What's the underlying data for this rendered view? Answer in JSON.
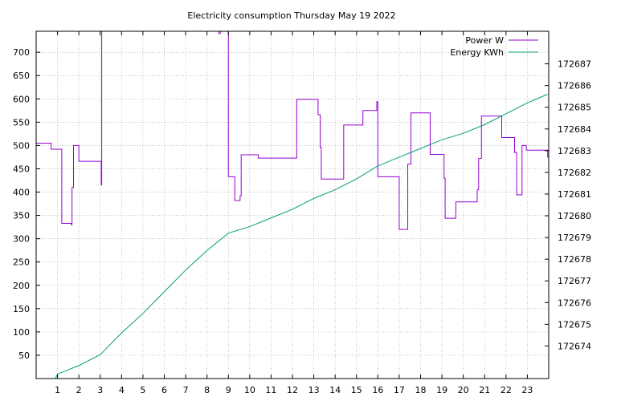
{
  "chart_data": {
    "type": "line",
    "title": "Electricity consumption Thursday May 19 2022",
    "xlabel": "",
    "ylabel": "",
    "y2label": "",
    "xlim": [
      0,
      24
    ],
    "ylim": [
      0,
      745
    ],
    "y2lim": [
      172672.5,
      172688.5
    ],
    "xticks": [
      "1",
      "2",
      "3",
      "4",
      "5",
      "6",
      "7",
      "8",
      "9",
      "10",
      "11",
      "12",
      "13",
      "14",
      "15",
      "16",
      "17",
      "18",
      "19",
      "20",
      "21",
      "22",
      "23"
    ],
    "yticks": [
      "50",
      "100",
      "150",
      "200",
      "250",
      "300",
      "350",
      "400",
      "450",
      "500",
      "550",
      "600",
      "650",
      "700"
    ],
    "y2ticks": [
      "172674",
      "172675",
      "172676",
      "172677",
      "172678",
      "172679",
      "172680",
      "172681",
      "172682",
      "172683",
      "172684",
      "172685",
      "172686",
      "172687"
    ],
    "grid": true,
    "legend_position": "top-right",
    "series": [
      {
        "name": "Power W",
        "axis": "y1",
        "color": "#9400d3",
        "step": true,
        "points": [
          [
            0,
            505
          ],
          [
            0.7,
            492
          ],
          [
            1.2,
            333
          ],
          [
            1.65,
            330
          ],
          [
            1.68,
            410
          ],
          [
            1.75,
            500
          ],
          [
            2.0,
            466
          ],
          [
            3.05,
            415
          ],
          [
            3.07,
            745
          ],
          [
            8.55,
            740
          ],
          [
            8.62,
            745
          ],
          [
            8.95,
            745
          ],
          [
            9.0,
            433
          ],
          [
            9.3,
            382
          ],
          [
            9.55,
            392
          ],
          [
            9.6,
            480
          ],
          [
            10.4,
            473
          ],
          [
            12.2,
            599
          ],
          [
            13.2,
            566
          ],
          [
            13.3,
            496
          ],
          [
            13.35,
            428
          ],
          [
            14.4,
            544
          ],
          [
            15.3,
            575
          ],
          [
            15.95,
            594
          ],
          [
            16.0,
            433
          ],
          [
            17.0,
            320
          ],
          [
            17.4,
            460
          ],
          [
            17.55,
            570
          ],
          [
            18.45,
            481
          ],
          [
            19.1,
            430
          ],
          [
            19.15,
            344
          ],
          [
            19.65,
            379
          ],
          [
            20.65,
            405
          ],
          [
            20.72,
            472
          ],
          [
            20.85,
            563
          ],
          [
            21.8,
            517
          ],
          [
            22.4,
            485
          ],
          [
            22.5,
            394
          ],
          [
            22.75,
            500
          ],
          [
            22.95,
            490
          ],
          [
            23.95,
            475
          ]
        ]
      },
      {
        "name": "Energy KWh",
        "axis": "y2",
        "color": "#009e73",
        "step": false,
        "points": [
          [
            0.9,
            172672.5
          ],
          [
            1.0,
            172672.7
          ],
          [
            2.0,
            172673.1
          ],
          [
            3.0,
            172673.6
          ],
          [
            4.0,
            172674.6
          ],
          [
            5.0,
            172675.5
          ],
          [
            6.0,
            172676.5
          ],
          [
            7.0,
            172677.5
          ],
          [
            8.0,
            172678.4
          ],
          [
            9.0,
            172679.2
          ],
          [
            10.0,
            172679.5
          ],
          [
            11.0,
            172679.9
          ],
          [
            12.0,
            172680.3
          ],
          [
            13.0,
            172680.8
          ],
          [
            14.0,
            172681.2
          ],
          [
            15.0,
            172681.7
          ],
          [
            16.0,
            172682.3
          ],
          [
            17.0,
            172682.7
          ],
          [
            18.0,
            172683.1
          ],
          [
            19.0,
            172683.5
          ],
          [
            20.0,
            172683.8
          ],
          [
            21.0,
            172684.2
          ],
          [
            22.0,
            172684.7
          ],
          [
            23.0,
            172685.2
          ],
          [
            23.95,
            172685.6
          ]
        ]
      }
    ]
  }
}
